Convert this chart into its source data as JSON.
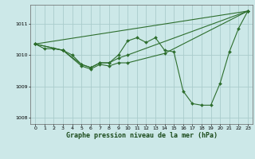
{
  "title": "Graphe pression niveau de la mer (hPa)",
  "bg_color": "#cce8e8",
  "grid_color": "#aacccc",
  "line_color": "#2d6e2d",
  "xlim": [
    -0.5,
    23.5
  ],
  "ylim": [
    1007.8,
    1011.6
  ],
  "yticks": [
    1008,
    1009,
    1010,
    1011
  ],
  "xticks": [
    0,
    1,
    2,
    3,
    4,
    5,
    6,
    7,
    8,
    9,
    10,
    11,
    12,
    13,
    14,
    15,
    16,
    17,
    18,
    19,
    20,
    21,
    22,
    23
  ],
  "series1": [
    [
      0,
      1010.35
    ],
    [
      1,
      1010.2
    ],
    [
      2,
      1010.2
    ],
    [
      3,
      1010.15
    ],
    [
      4,
      1010.0
    ],
    [
      5,
      1009.7
    ],
    [
      6,
      1009.6
    ],
    [
      7,
      1009.75
    ],
    [
      8,
      1009.75
    ],
    [
      9,
      1010.0
    ],
    [
      10,
      1010.45
    ],
    [
      11,
      1010.55
    ],
    [
      12,
      1010.4
    ],
    [
      13,
      1010.55
    ],
    [
      14,
      1010.15
    ],
    [
      15,
      1010.1
    ],
    [
      16,
      1008.85
    ],
    [
      17,
      1008.45
    ],
    [
      18,
      1008.4
    ],
    [
      19,
      1008.4
    ],
    [
      20,
      1009.1
    ],
    [
      21,
      1010.1
    ],
    [
      22,
      1010.85
    ],
    [
      23,
      1011.4
    ]
  ],
  "series2": [
    [
      0,
      1010.35
    ],
    [
      23,
      1011.4
    ]
  ],
  "series3": [
    [
      0,
      1010.35
    ],
    [
      3,
      1010.15
    ],
    [
      5,
      1009.65
    ],
    [
      6,
      1009.55
    ],
    [
      7,
      1009.7
    ],
    [
      8,
      1009.65
    ],
    [
      9,
      1009.75
    ],
    [
      10,
      1009.75
    ],
    [
      14,
      1010.05
    ],
    [
      23,
      1011.4
    ]
  ],
  "series4": [
    [
      0,
      1010.35
    ],
    [
      3,
      1010.15
    ],
    [
      5,
      1009.7
    ],
    [
      6,
      1009.6
    ],
    [
      7,
      1009.75
    ],
    [
      8,
      1009.75
    ],
    [
      9,
      1009.9
    ],
    [
      10,
      1010.0
    ],
    [
      23,
      1011.4
    ]
  ]
}
